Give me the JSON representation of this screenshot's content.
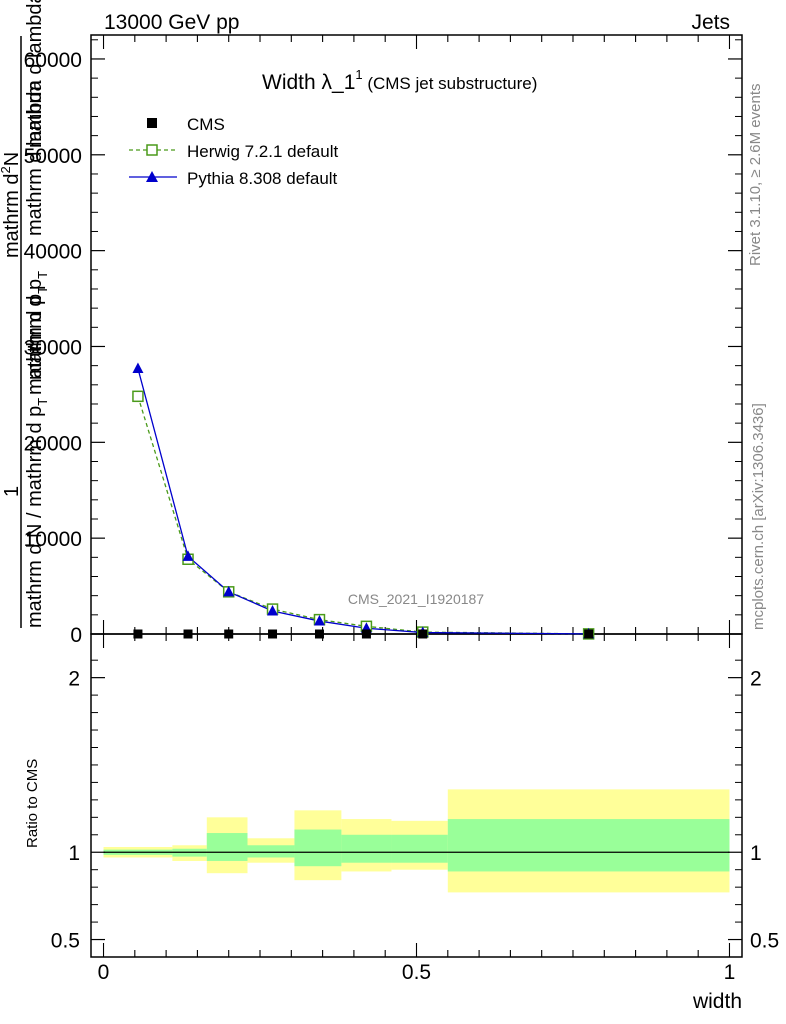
{
  "header": {
    "left": "13000 GeV pp",
    "right": "Jets"
  },
  "plot_title": {
    "main": "Width λ_1",
    "sup": "1",
    "sub": " (CMS jet substructure)"
  },
  "side_labels": {
    "rivet": "Rivet 3.1.10, ≥ 2.6M events",
    "mcplots": "mcplots.cern.ch [arXiv:1306.3436]"
  },
  "watermark": "CMS_2021_I1920187",
  "ylabel_main": {
    "numerator_1": "1",
    "numerator_2": "mathrm d N / mathrm d p",
    "sub_T": "T",
    "numerator_3": "mathrm d",
    "sup_2": "2",
    "numerator_4": "N",
    "denominator": "mathrm d p",
    "denominator_2": "mathrm d lambda",
    "garble_1": "mathrm d p",
    "garble_2": "mathrm d lambda"
  },
  "ylabel_ratio": "Ratio to CMS",
  "xlabel": "width",
  "colors": {
    "cms": "#000000",
    "herwig": "#4a9a1a",
    "pythia": "#0000cc",
    "band_outer": "#ffff99",
    "band_inner": "#99ff99"
  },
  "chart_data": {
    "type": "line",
    "xlabel": "width",
    "xlim": [
      -0.02,
      1.02
    ],
    "x_ticks": [
      "0",
      "0.5",
      "1"
    ],
    "main_panel": {
      "ylim": [
        0,
        62500
      ],
      "y_ticks": [
        "0",
        "10000",
        "20000",
        "30000",
        "40000",
        "50000",
        "60000"
      ],
      "series": [
        {
          "name": "CMS",
          "style": "markers",
          "x": [
            0.055,
            0.135,
            0.2,
            0.27,
            0.345,
            0.42,
            0.51,
            0.775
          ],
          "values": [
            0,
            0,
            0,
            0,
            0,
            0,
            0,
            0
          ]
        },
        {
          "name": "Herwig 7.2.1 default",
          "style": "dashed-open-square",
          "x": [
            0.055,
            0.135,
            0.2,
            0.27,
            0.345,
            0.42,
            0.51,
            0.775
          ],
          "values": [
            24800,
            7800,
            4400,
            2600,
            1500,
            800,
            200,
            10
          ]
        },
        {
          "name": "Pythia 8.308 default",
          "style": "solid-triangle",
          "x": [
            0.055,
            0.135,
            0.2,
            0.27,
            0.345,
            0.42,
            0.51,
            0.775
          ],
          "values": [
            27700,
            8100,
            4400,
            2400,
            1350,
            600,
            150,
            10
          ]
        }
      ]
    },
    "ratio_panel": {
      "ylim": [
        0.4,
        2.25
      ],
      "y_ticks": [
        "0.5",
        "1",
        "2"
      ],
      "bins": [
        {
          "lo": 0.0,
          "hi": 0.11,
          "outer": [
            0.97,
            1.03
          ],
          "inner": [
            0.985,
            1.015
          ]
        },
        {
          "lo": 0.11,
          "hi": 0.165,
          "outer": [
            0.95,
            1.04
          ],
          "inner": [
            0.975,
            1.02
          ]
        },
        {
          "lo": 0.165,
          "hi": 0.23,
          "outer": [
            0.88,
            1.2
          ],
          "inner": [
            0.95,
            1.11
          ]
        },
        {
          "lo": 0.23,
          "hi": 0.305,
          "outer": [
            0.94,
            1.08
          ],
          "inner": [
            0.97,
            1.04
          ]
        },
        {
          "lo": 0.305,
          "hi": 0.38,
          "outer": [
            0.84,
            1.24
          ],
          "inner": [
            0.92,
            1.13
          ]
        },
        {
          "lo": 0.38,
          "hi": 0.46,
          "outer": [
            0.89,
            1.19
          ],
          "inner": [
            0.94,
            1.1
          ]
        },
        {
          "lo": 0.46,
          "hi": 0.55,
          "outer": [
            0.9,
            1.18
          ],
          "inner": [
            0.94,
            1.1
          ]
        },
        {
          "lo": 0.55,
          "hi": 1.0,
          "outer": [
            0.77,
            1.36
          ],
          "inner": [
            0.89,
            1.19
          ]
        }
      ]
    }
  }
}
